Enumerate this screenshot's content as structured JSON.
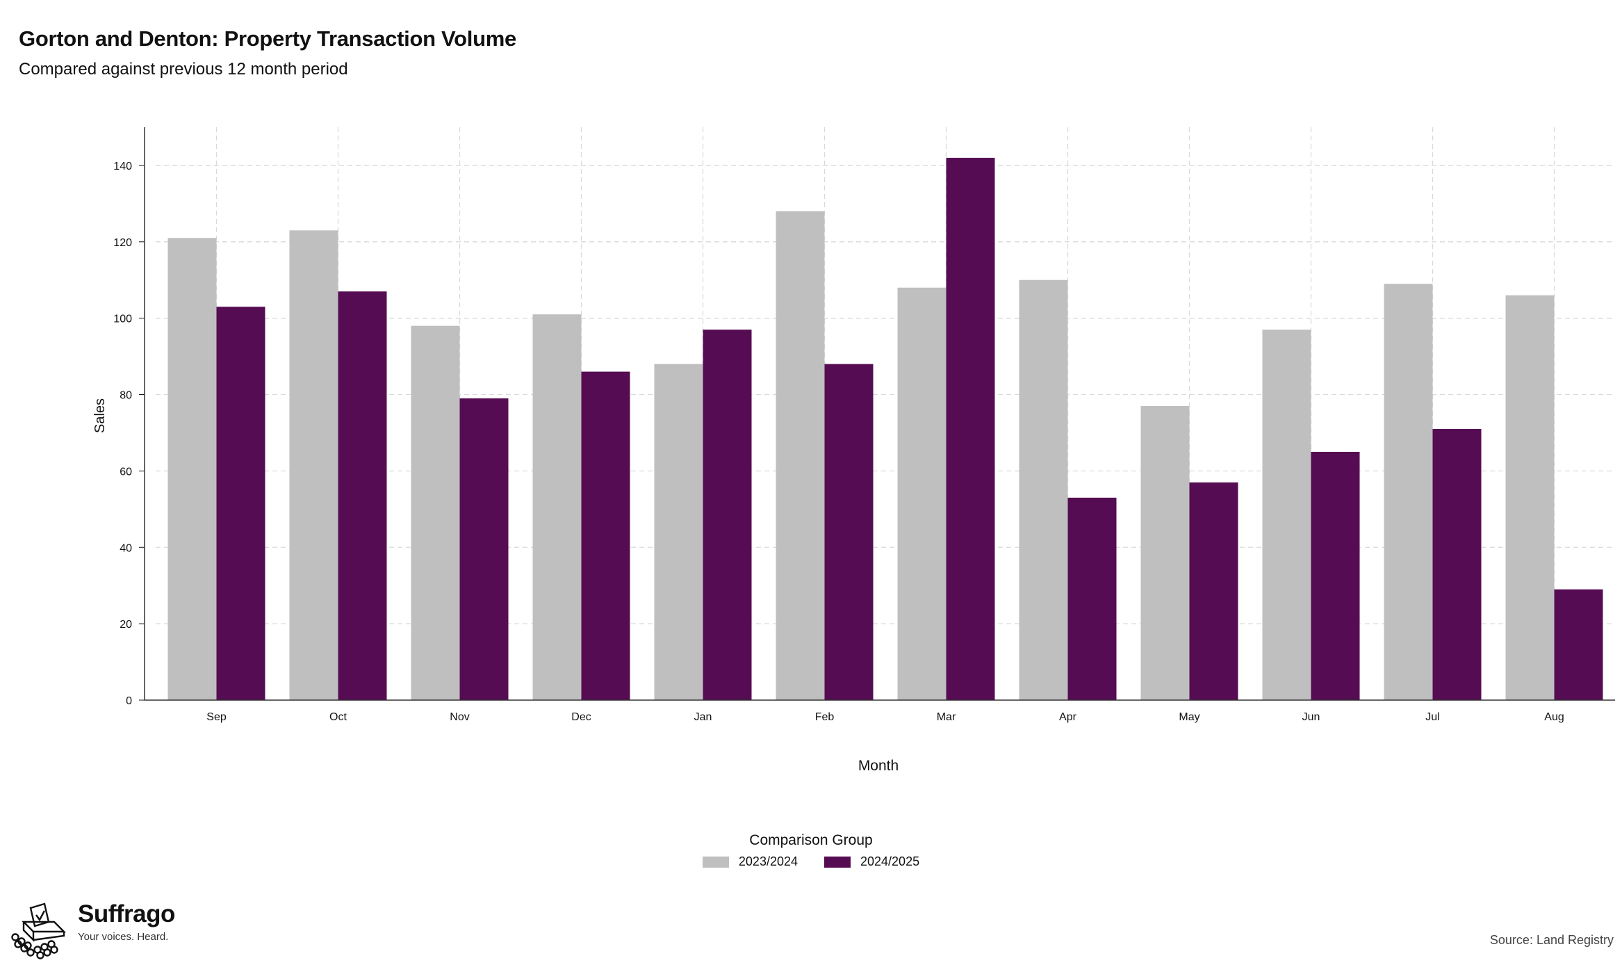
{
  "header": {
    "title": "Gorton and Denton: Property Transaction Volume",
    "subtitle": "Compared against previous 12 month period"
  },
  "legend": {
    "title": "Comparison Group",
    "items": [
      {
        "label": "2023/2024",
        "color": "#bfbfbf"
      },
      {
        "label": "2024/2025",
        "color": "#560c53"
      }
    ]
  },
  "brand": {
    "name": "Suffrago",
    "tagline": "Your voices. Heard."
  },
  "source": "Source: Land Registry",
  "chart_data": {
    "type": "bar",
    "xlabel": "Month",
    "ylabel": "Sales",
    "ylim": [
      0,
      150
    ],
    "yticks": [
      0,
      20,
      40,
      60,
      80,
      100,
      120,
      140
    ],
    "grid": true,
    "legend_position": "bottom",
    "categories": [
      "Sep",
      "Oct",
      "Nov",
      "Dec",
      "Jan",
      "Feb",
      "Mar",
      "Apr",
      "May",
      "Jun",
      "Jul",
      "Aug"
    ],
    "series": [
      {
        "name": "2023/2024",
        "color": "#bfbfbf",
        "values": [
          121,
          123,
          98,
          101,
          88,
          128,
          108,
          110,
          77,
          97,
          109,
          106
        ]
      },
      {
        "name": "2024/2025",
        "color": "#560c53",
        "values": [
          103,
          107,
          79,
          86,
          97,
          88,
          142,
          53,
          57,
          65,
          71,
          29
        ]
      }
    ]
  }
}
